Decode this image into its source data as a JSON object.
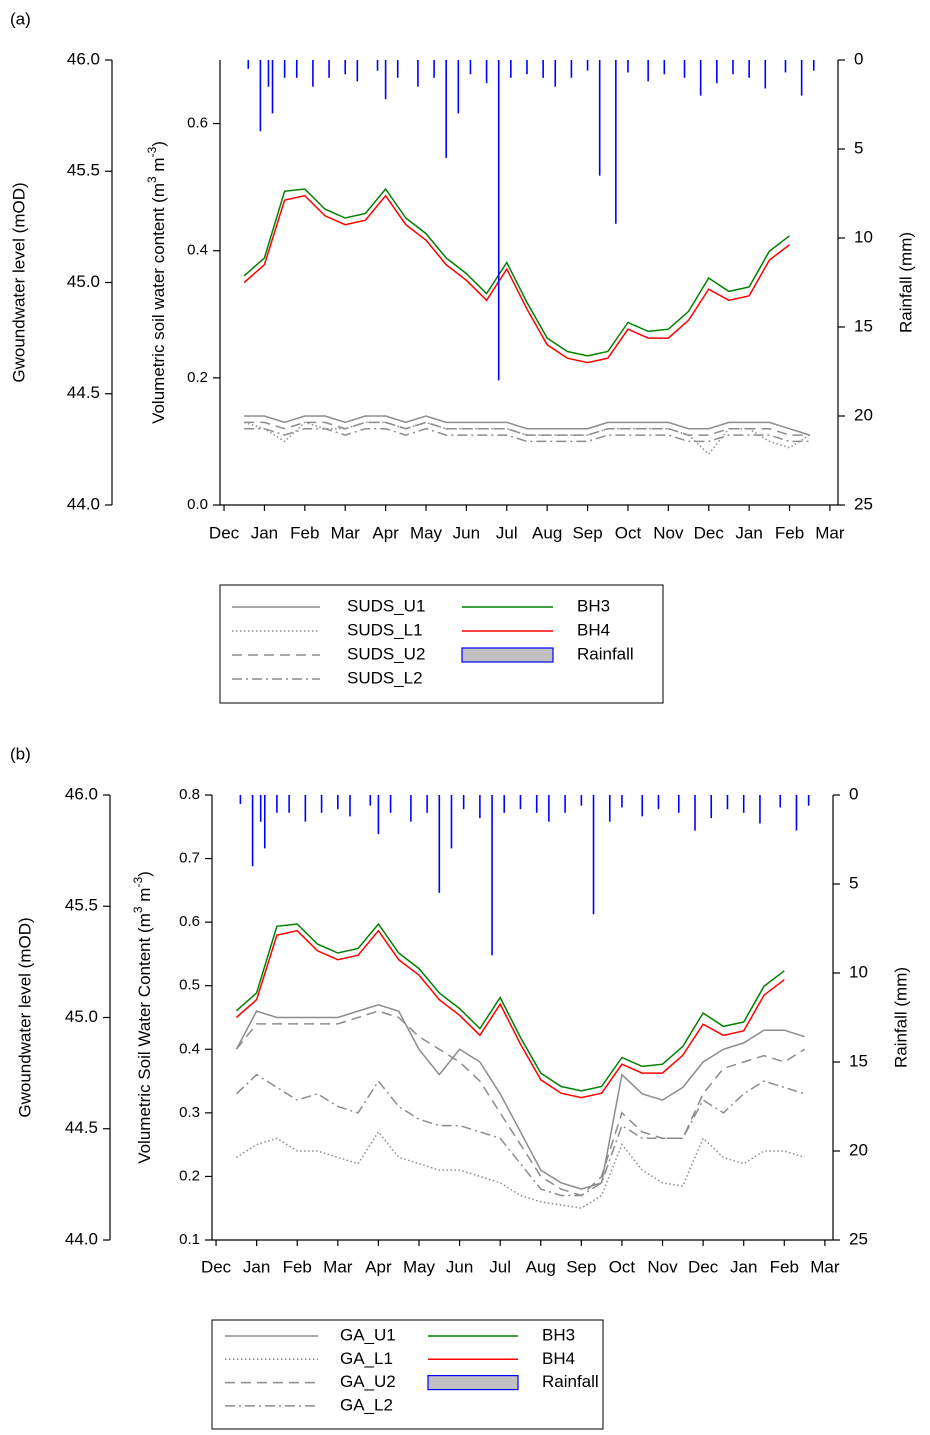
{
  "chart_data": [
    {
      "type": "line",
      "panel_label": "(a)",
      "ylabel": "Gwoundwater level (mOD)",
      "y2label": [
        "Volumetric soil water content (m",
        "3",
        " m",
        "-3",
        ")"
      ],
      "y3label": "Rainfall (mm)",
      "xlim": [
        -0.1,
        15.2
      ],
      "xticks": [
        {
          "value": 0,
          "label": "Dec"
        },
        {
          "value": 1,
          "label": "Jan"
        },
        {
          "value": 2,
          "label": "Feb"
        },
        {
          "value": 3,
          "label": "Mar"
        },
        {
          "value": 4,
          "label": "Apr"
        },
        {
          "value": 5,
          "label": "May"
        },
        {
          "value": 6,
          "label": "Jun"
        },
        {
          "value": 7,
          "label": "Jul"
        },
        {
          "value": 8,
          "label": "Aug"
        },
        {
          "value": 9,
          "label": "Sep"
        },
        {
          "value": 10,
          "label": "Oct"
        },
        {
          "value": 11,
          "label": "Nov"
        },
        {
          "value": 12,
          "label": "Dec"
        },
        {
          "value": 13,
          "label": "Jan"
        },
        {
          "value": 14,
          "label": "Feb"
        },
        {
          "value": 15,
          "label": "Mar"
        }
      ],
      "ylim": [
        44,
        46
      ],
      "yticks": [
        {
          "value": 44,
          "label": "44.0"
        },
        44.5,
        {
          "value": 45,
          "label": "45.0"
        },
        45.5,
        {
          "value": 46,
          "label": "46.0"
        }
      ],
      "y2lim": [
        0,
        0.7
      ],
      "y2ticks": [
        {
          "value": 0,
          "label": "0.0"
        },
        0.2,
        0.4,
        0.6
      ],
      "y3lim": [
        0,
        25
      ],
      "y3_reversed": true,
      "y3ticks": [
        0,
        5,
        10,
        15,
        20,
        25
      ],
      "x": [
        0.5,
        1,
        1.5,
        2,
        2.5,
        3,
        3.5,
        4,
        4.5,
        5,
        5.5,
        6,
        6.5,
        7,
        7.5,
        8,
        8.5,
        9,
        9.5,
        10,
        10.5,
        11,
        11.5,
        12,
        12.5,
        13,
        13.5,
        14,
        14.5
      ],
      "series": [
        {
          "name": "SUDS_U1",
          "color": "#8c8c8c",
          "style": "solid",
          "axis": "y2",
          "values": [
            0.14,
            0.14,
            0.13,
            0.14,
            0.14,
            0.13,
            0.14,
            0.14,
            0.13,
            0.14,
            0.13,
            0.13,
            0.13,
            0.13,
            0.12,
            0.12,
            0.12,
            0.12,
            0.13,
            0.13,
            0.13,
            0.13,
            0.12,
            0.12,
            0.13,
            0.13,
            0.13,
            0.12,
            0.11
          ]
        },
        {
          "name": "SUDS_L1",
          "color": "#8c8c8c",
          "style": "dotted",
          "axis": "y2",
          "values": [
            0.13,
            0.12,
            0.1,
            0.13,
            0.12,
            0.12,
            0.13,
            0.13,
            0.12,
            0.13,
            0.12,
            0.12,
            0.12,
            0.12,
            0.11,
            0.11,
            0.11,
            0.11,
            0.12,
            0.12,
            0.12,
            0.12,
            0.11,
            0.08,
            0.12,
            0.12,
            0.1,
            0.09,
            0.11
          ]
        },
        {
          "name": "SUDS_U2",
          "color": "#8c8c8c",
          "style": "dashed",
          "axis": "y2",
          "values": [
            0.13,
            0.13,
            0.12,
            0.13,
            0.13,
            0.12,
            0.13,
            0.13,
            0.12,
            0.13,
            0.12,
            0.12,
            0.12,
            0.12,
            0.11,
            0.11,
            0.11,
            0.11,
            0.12,
            0.12,
            0.12,
            0.12,
            0.11,
            0.11,
            0.12,
            0.12,
            0.12,
            0.11,
            0.11
          ]
        },
        {
          "name": "SUDS_L2",
          "color": "#8c8c8c",
          "style": "dashdot",
          "axis": "y2",
          "values": [
            0.12,
            0.12,
            0.11,
            0.12,
            0.12,
            0.11,
            0.12,
            0.12,
            0.11,
            0.12,
            0.11,
            0.11,
            0.11,
            0.11,
            0.1,
            0.1,
            0.1,
            0.1,
            0.11,
            0.11,
            0.11,
            0.11,
            0.1,
            0.1,
            0.11,
            0.11,
            0.11,
            0.1,
            0.1
          ]
        },
        {
          "name": "BH3",
          "color": "#008000",
          "style": "solid",
          "axis": "y",
          "values": [
            45.03,
            45.11,
            45.41,
            45.42,
            45.33,
            45.29,
            45.31,
            45.42,
            45.29,
            45.22,
            45.11,
            45.04,
            44.95,
            45.09,
            44.91,
            44.75,
            44.69,
            44.67,
            44.69,
            44.82,
            44.78,
            44.79,
            44.87,
            45.02,
            44.96,
            44.98,
            45.14,
            45.21,
            null
          ]
        },
        {
          "name": "BH4",
          "color": "#ff0000",
          "style": "solid",
          "axis": "y",
          "values": [
            45.0,
            45.08,
            45.37,
            45.39,
            45.3,
            45.26,
            45.28,
            45.39,
            45.26,
            45.19,
            45.08,
            45.01,
            44.92,
            45.06,
            44.88,
            44.72,
            44.66,
            44.64,
            44.66,
            44.79,
            44.75,
            44.75,
            44.83,
            44.97,
            44.92,
            44.94,
            45.1,
            45.17,
            null
          ]
        },
        {
          "name": "Rainfall",
          "color": "#0000ff",
          "legend_fill": "#c0c0c0",
          "style": "bar",
          "axis": "y3",
          "x": [
            0.6,
            0.9,
            1.1,
            1.2,
            1.5,
            1.8,
            2.2,
            2.6,
            3.0,
            3.3,
            3.8,
            4.0,
            4.3,
            4.8,
            5.2,
            5.5,
            5.8,
            6.1,
            6.5,
            6.8,
            7.1,
            7.5,
            7.9,
            8.2,
            8.6,
            9.0,
            9.3,
            9.7,
            10.0,
            10.5,
            10.9,
            11.4,
            11.8,
            12.2,
            12.6,
            13.0,
            13.4,
            13.9,
            14.3,
            14.6
          ],
          "values": [
            0.5,
            4,
            1.5,
            3,
            1,
            1,
            1.5,
            1,
            0.8,
            1.2,
            0.6,
            2.2,
            1,
            1.5,
            1,
            5.5,
            3,
            0.8,
            1.3,
            18,
            1,
            0.8,
            1,
            1.5,
            1,
            0.6,
            6.5,
            9.2,
            0.7,
            1.2,
            0.8,
            1,
            2,
            1.3,
            0.8,
            1,
            1.6,
            0.7,
            2,
            0.6
          ]
        }
      ]
    },
    {
      "type": "line",
      "panel_label": "(b)",
      "ylabel": "Gwoundwater level (mOD)",
      "y2label": [
        "Volumetric Soil Water Content (m",
        "3",
        " m",
        "-3",
        ")"
      ],
      "y3label": "Rainfall (mm)",
      "xlim": [
        -0.1,
        15.2
      ],
      "xticks": [
        {
          "value": 0,
          "label": "Dec"
        },
        {
          "value": 1,
          "label": "Jan"
        },
        {
          "value": 2,
          "label": "Feb"
        },
        {
          "value": 3,
          "label": "Mar"
        },
        {
          "value": 4,
          "label": "Apr"
        },
        {
          "value": 5,
          "label": "May"
        },
        {
          "value": 6,
          "label": "Jun"
        },
        {
          "value": 7,
          "label": "Jul"
        },
        {
          "value": 8,
          "label": "Aug"
        },
        {
          "value": 9,
          "label": "Sep"
        },
        {
          "value": 10,
          "label": "Oct"
        },
        {
          "value": 11,
          "label": "Nov"
        },
        {
          "value": 12,
          "label": "Dec"
        },
        {
          "value": 13,
          "label": "Jan"
        },
        {
          "value": 14,
          "label": "Feb"
        },
        {
          "value": 15,
          "label": "Mar"
        }
      ],
      "ylim": [
        44,
        46
      ],
      "yticks": [
        {
          "value": 44,
          "label": "44.0"
        },
        44.5,
        {
          "value": 45,
          "label": "45.0"
        },
        45.5,
        {
          "value": 46,
          "label": "46.0"
        }
      ],
      "y2lim": [
        0.1,
        0.8
      ],
      "y2ticks": [
        0.1,
        0.2,
        0.3,
        0.4,
        0.5,
        0.6,
        0.7,
        0.8
      ],
      "y3lim": [
        0,
        25
      ],
      "y3_reversed": true,
      "y3ticks": [
        0,
        5,
        10,
        15,
        20,
        25
      ],
      "x": [
        0.5,
        1,
        1.5,
        2,
        2.5,
        3,
        3.5,
        4,
        4.5,
        5,
        5.5,
        6,
        6.5,
        7,
        7.5,
        8,
        8.5,
        9,
        9.5,
        10,
        10.5,
        11,
        11.5,
        12,
        12.5,
        13,
        13.5,
        14,
        14.5
      ],
      "series": [
        {
          "name": "GA_U1",
          "color": "#8c8c8c",
          "style": "solid",
          "axis": "y2",
          "values": [
            0.4,
            0.46,
            0.45,
            0.45,
            0.45,
            0.45,
            0.46,
            0.47,
            0.46,
            0.4,
            0.36,
            0.4,
            0.38,
            0.33,
            0.27,
            0.21,
            0.19,
            0.18,
            0.19,
            0.36,
            0.33,
            0.32,
            0.34,
            0.38,
            0.4,
            0.41,
            0.43,
            0.43,
            0.42
          ]
        },
        {
          "name": "GA_L1",
          "color": "#8c8c8c",
          "style": "dotted",
          "axis": "y2",
          "values": [
            0.23,
            0.25,
            0.26,
            0.24,
            0.24,
            0.23,
            0.22,
            0.27,
            0.23,
            0.22,
            0.21,
            0.21,
            0.2,
            0.19,
            0.17,
            0.16,
            0.155,
            0.15,
            0.17,
            0.25,
            0.21,
            0.19,
            0.185,
            0.26,
            0.23,
            0.22,
            0.24,
            0.24,
            0.23
          ]
        },
        {
          "name": "GA_U2",
          "color": "#8c8c8c",
          "style": "dashed",
          "axis": "y2",
          "values": [
            0.4,
            0.44,
            0.44,
            0.44,
            0.44,
            0.44,
            0.45,
            0.46,
            0.45,
            0.42,
            0.4,
            0.38,
            0.35,
            0.3,
            0.25,
            0.2,
            0.18,
            0.17,
            0.2,
            0.3,
            0.27,
            0.26,
            0.26,
            0.33,
            0.37,
            0.38,
            0.39,
            0.38,
            0.4
          ]
        },
        {
          "name": "GA_L2",
          "color": "#8c8c8c",
          "style": "dashdot",
          "axis": "y2",
          "values": [
            0.33,
            0.36,
            0.34,
            0.32,
            0.33,
            0.31,
            0.3,
            0.35,
            0.31,
            0.29,
            0.28,
            0.28,
            0.27,
            0.26,
            0.22,
            0.18,
            0.17,
            0.17,
            0.19,
            0.28,
            0.26,
            0.26,
            0.26,
            0.32,
            0.3,
            0.33,
            0.35,
            0.34,
            0.33
          ]
        },
        {
          "name": "BH3",
          "color": "#008000",
          "style": "solid",
          "axis": "y",
          "values": [
            45.03,
            45.11,
            45.41,
            45.42,
            45.33,
            45.29,
            45.31,
            45.42,
            45.29,
            45.22,
            45.11,
            45.04,
            44.95,
            45.09,
            44.91,
            44.75,
            44.69,
            44.67,
            44.69,
            44.82,
            44.78,
            44.79,
            44.87,
            45.02,
            44.96,
            44.98,
            45.14,
            45.21,
            null
          ]
        },
        {
          "name": "BH4",
          "color": "#ff0000",
          "style": "solid",
          "axis": "y",
          "values": [
            45.0,
            45.08,
            45.37,
            45.39,
            45.3,
            45.26,
            45.28,
            45.39,
            45.26,
            45.19,
            45.08,
            45.01,
            44.92,
            45.06,
            44.88,
            44.72,
            44.66,
            44.64,
            44.66,
            44.79,
            44.75,
            44.75,
            44.83,
            44.97,
            44.92,
            44.94,
            45.1,
            45.17,
            null
          ]
        },
        {
          "name": "Rainfall",
          "color": "#0000ff",
          "legend_fill": "#c0c0c0",
          "style": "bar",
          "axis": "y3",
          "x": [
            0.6,
            0.9,
            1.1,
            1.2,
            1.5,
            1.8,
            2.2,
            2.6,
            3.0,
            3.3,
            3.8,
            4.0,
            4.3,
            4.8,
            5.2,
            5.5,
            5.8,
            6.1,
            6.5,
            6.8,
            7.1,
            7.5,
            7.9,
            8.2,
            8.6,
            9.0,
            9.3,
            9.7,
            10.0,
            10.5,
            10.9,
            11.4,
            11.8,
            12.2,
            12.6,
            13.0,
            13.4,
            13.9,
            14.3,
            14.6
          ],
          "values": [
            0.5,
            4,
            1.5,
            3,
            1,
            1,
            1.5,
            1,
            0.8,
            1.2,
            0.6,
            2.2,
            1,
            1.5,
            1,
            5.5,
            3,
            0.8,
            1.3,
            9,
            1,
            0.8,
            1,
            1.5,
            1,
            0.6,
            6.7,
            1.5,
            0.7,
            1.2,
            0.8,
            1,
            2,
            1.3,
            0.8,
            1,
            1.6,
            0.7,
            2,
            0.6
          ]
        }
      ]
    }
  ]
}
